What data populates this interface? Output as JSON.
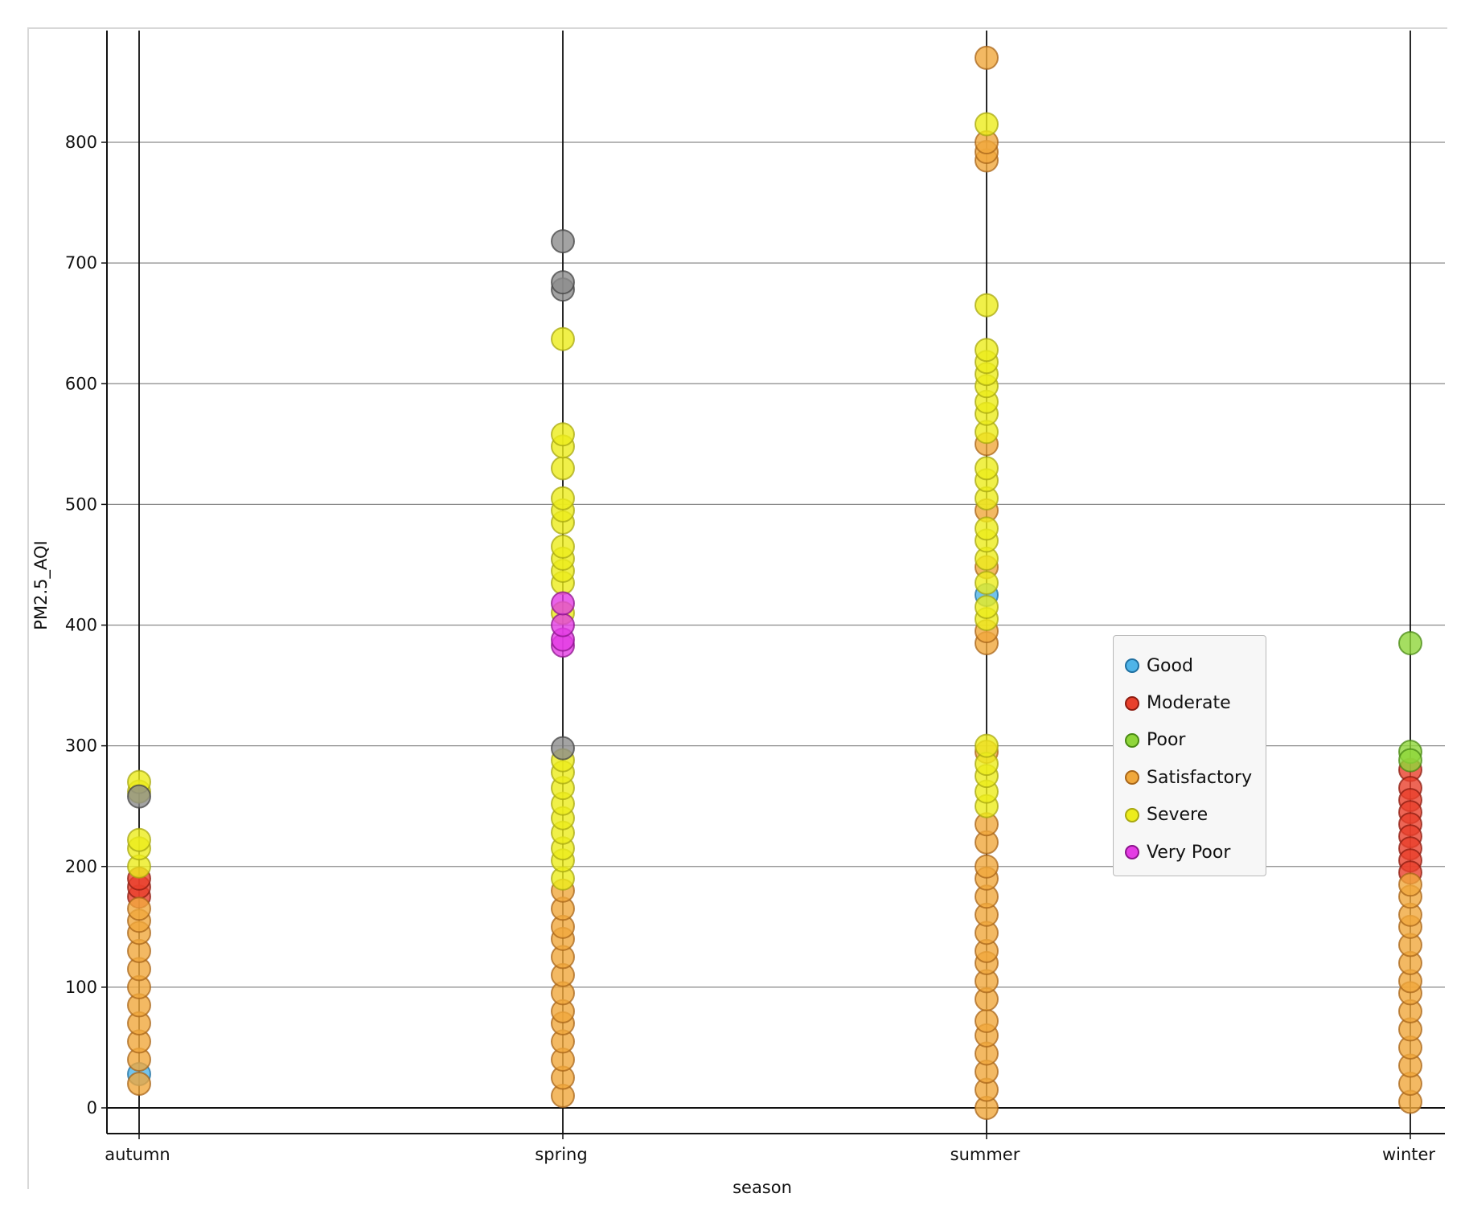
{
  "chart_data": {
    "type": "scatter",
    "title": "",
    "xlabel": "season",
    "ylabel": "PM2.5_AQI",
    "categories": [
      "autumn",
      "spring",
      "summer",
      "winter"
    ],
    "ylim": [
      -22,
      900
    ],
    "yticks": [
      0,
      100,
      200,
      300,
      400,
      500,
      600,
      700,
      800
    ],
    "grid": true,
    "legend_position": "center-right",
    "series": [
      {
        "name": "Good",
        "color": "#4fb4e8",
        "edge": "#1f6fa0",
        "points": [
          {
            "x": "autumn",
            "y": 28
          },
          {
            "x": "summer",
            "y": 425
          }
        ]
      },
      {
        "name": "Moderate",
        "color": "#e8402c",
        "edge": "#8c1c10",
        "points": [
          {
            "x": "autumn",
            "y": 175
          },
          {
            "x": "autumn",
            "y": 183
          },
          {
            "x": "autumn",
            "y": 190
          },
          {
            "x": "winter",
            "y": 280
          },
          {
            "x": "winter",
            "y": 265
          },
          {
            "x": "winter",
            "y": 255
          },
          {
            "x": "winter",
            "y": 245
          },
          {
            "x": "winter",
            "y": 235
          },
          {
            "x": "winter",
            "y": 225
          },
          {
            "x": "winter",
            "y": 215
          },
          {
            "x": "winter",
            "y": 205
          },
          {
            "x": "winter",
            "y": 195
          }
        ]
      },
      {
        "name": "Poor",
        "color": "#8fd63a",
        "edge": "#4a8a14",
        "points": [
          {
            "x": "winter",
            "y": 385
          },
          {
            "x": "winter",
            "y": 295
          },
          {
            "x": "winter",
            "y": 288
          }
        ]
      },
      {
        "name": "Satisfactory",
        "color": "#f0a83c",
        "edge": "#a8661a",
        "points": [
          {
            "x": "autumn",
            "y": 20
          },
          {
            "x": "autumn",
            "y": 40
          },
          {
            "x": "autumn",
            "y": 55
          },
          {
            "x": "autumn",
            "y": 70
          },
          {
            "x": "autumn",
            "y": 85
          },
          {
            "x": "autumn",
            "y": 100
          },
          {
            "x": "autumn",
            "y": 115
          },
          {
            "x": "autumn",
            "y": 130
          },
          {
            "x": "autumn",
            "y": 145
          },
          {
            "x": "autumn",
            "y": 155
          },
          {
            "x": "autumn",
            "y": 165
          },
          {
            "x": "spring",
            "y": 10
          },
          {
            "x": "spring",
            "y": 25
          },
          {
            "x": "spring",
            "y": 40
          },
          {
            "x": "spring",
            "y": 55
          },
          {
            "x": "spring",
            "y": 70
          },
          {
            "x": "spring",
            "y": 80
          },
          {
            "x": "spring",
            "y": 95
          },
          {
            "x": "spring",
            "y": 110
          },
          {
            "x": "spring",
            "y": 125
          },
          {
            "x": "spring",
            "y": 140
          },
          {
            "x": "spring",
            "y": 150
          },
          {
            "x": "spring",
            "y": 165
          },
          {
            "x": "spring",
            "y": 180
          },
          {
            "x": "summer",
            "y": 0
          },
          {
            "x": "summer",
            "y": 15
          },
          {
            "x": "summer",
            "y": 30
          },
          {
            "x": "summer",
            "y": 45
          },
          {
            "x": "summer",
            "y": 60
          },
          {
            "x": "summer",
            "y": 72
          },
          {
            "x": "summer",
            "y": 90
          },
          {
            "x": "summer",
            "y": 105
          },
          {
            "x": "summer",
            "y": 120
          },
          {
            "x": "summer",
            "y": 130
          },
          {
            "x": "summer",
            "y": 145
          },
          {
            "x": "summer",
            "y": 160
          },
          {
            "x": "summer",
            "y": 175
          },
          {
            "x": "summer",
            "y": 190
          },
          {
            "x": "summer",
            "y": 200
          },
          {
            "x": "summer",
            "y": 220
          },
          {
            "x": "summer",
            "y": 235
          },
          {
            "x": "summer",
            "y": 295
          },
          {
            "x": "summer",
            "y": 385
          },
          {
            "x": "summer",
            "y": 395
          },
          {
            "x": "summer",
            "y": 448
          },
          {
            "x": "summer",
            "y": 495
          },
          {
            "x": "summer",
            "y": 550
          },
          {
            "x": "summer",
            "y": 785
          },
          {
            "x": "summer",
            "y": 792
          },
          {
            "x": "summer",
            "y": 800
          },
          {
            "x": "summer",
            "y": 870
          },
          {
            "x": "winter",
            "y": 5
          },
          {
            "x": "winter",
            "y": 20
          },
          {
            "x": "winter",
            "y": 35
          },
          {
            "x": "winter",
            "y": 50
          },
          {
            "x": "winter",
            "y": 65
          },
          {
            "x": "winter",
            "y": 80
          },
          {
            "x": "winter",
            "y": 95
          },
          {
            "x": "winter",
            "y": 105
          },
          {
            "x": "winter",
            "y": 120
          },
          {
            "x": "winter",
            "y": 135
          },
          {
            "x": "winter",
            "y": 150
          },
          {
            "x": "winter",
            "y": 160
          },
          {
            "x": "winter",
            "y": 175
          },
          {
            "x": "winter",
            "y": 185
          }
        ]
      },
      {
        "name": "Severe",
        "color": "#ecec1c",
        "edge": "#a8a812",
        "points": [
          {
            "x": "autumn",
            "y": 200
          },
          {
            "x": "autumn",
            "y": 215
          },
          {
            "x": "autumn",
            "y": 222
          },
          {
            "x": "autumn",
            "y": 262
          },
          {
            "x": "autumn",
            "y": 270
          },
          {
            "x": "spring",
            "y": 190
          },
          {
            "x": "spring",
            "y": 205
          },
          {
            "x": "spring",
            "y": 215
          },
          {
            "x": "spring",
            "y": 228
          },
          {
            "x": "spring",
            "y": 240
          },
          {
            "x": "spring",
            "y": 252
          },
          {
            "x": "spring",
            "y": 265
          },
          {
            "x": "spring",
            "y": 278
          },
          {
            "x": "spring",
            "y": 288
          },
          {
            "x": "spring",
            "y": 410
          },
          {
            "x": "spring",
            "y": 435
          },
          {
            "x": "spring",
            "y": 445
          },
          {
            "x": "spring",
            "y": 455
          },
          {
            "x": "spring",
            "y": 465
          },
          {
            "x": "spring",
            "y": 485
          },
          {
            "x": "spring",
            "y": 495
          },
          {
            "x": "spring",
            "y": 505
          },
          {
            "x": "spring",
            "y": 530
          },
          {
            "x": "spring",
            "y": 548
          },
          {
            "x": "spring",
            "y": 558
          },
          {
            "x": "spring",
            "y": 637
          },
          {
            "x": "summer",
            "y": 250
          },
          {
            "x": "summer",
            "y": 262
          },
          {
            "x": "summer",
            "y": 275
          },
          {
            "x": "summer",
            "y": 285
          },
          {
            "x": "summer",
            "y": 300
          },
          {
            "x": "summer",
            "y": 405
          },
          {
            "x": "summer",
            "y": 415
          },
          {
            "x": "summer",
            "y": 435
          },
          {
            "x": "summer",
            "y": 455
          },
          {
            "x": "summer",
            "y": 470
          },
          {
            "x": "summer",
            "y": 480
          },
          {
            "x": "summer",
            "y": 505
          },
          {
            "x": "summer",
            "y": 520
          },
          {
            "x": "summer",
            "y": 530
          },
          {
            "x": "summer",
            "y": 560
          },
          {
            "x": "summer",
            "y": 575
          },
          {
            "x": "summer",
            "y": 585
          },
          {
            "x": "summer",
            "y": 598
          },
          {
            "x": "summer",
            "y": 608
          },
          {
            "x": "summer",
            "y": 618
          },
          {
            "x": "summer",
            "y": 628
          },
          {
            "x": "summer",
            "y": 665
          },
          {
            "x": "summer",
            "y": 815
          }
        ]
      },
      {
        "name": "Very Poor",
        "color": "#e43ce4",
        "edge": "#8c148c",
        "points": [
          {
            "x": "spring",
            "y": 383
          },
          {
            "x": "spring",
            "y": 388
          },
          {
            "x": "spring",
            "y": 400
          },
          {
            "x": "spring",
            "y": 418
          }
        ]
      },
      {
        "name": "",
        "color": "#8c8c8c",
        "edge": "#444444",
        "points": [
          {
            "x": "autumn",
            "y": 258
          },
          {
            "x": "spring",
            "y": 298
          },
          {
            "x": "spring",
            "y": 678
          },
          {
            "x": "spring",
            "y": 684
          },
          {
            "x": "spring",
            "y": 718
          }
        ]
      }
    ]
  }
}
